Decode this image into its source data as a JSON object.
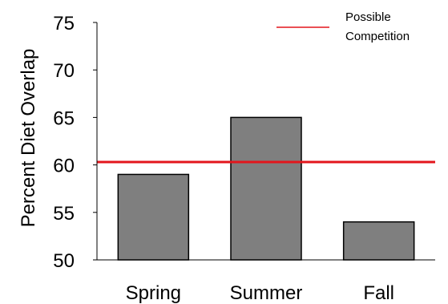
{
  "chart_data": {
    "type": "bar",
    "categories": [
      "Spring",
      "Summer",
      "Fall"
    ],
    "values": [
      59,
      65,
      54
    ],
    "ylabel": "Percent Diet Overlap",
    "xlabel": "",
    "ylim": [
      50,
      75
    ],
    "yticks": [
      50,
      55,
      60,
      65,
      70,
      75
    ],
    "bar_color": "#7f7f7f",
    "bar_edge_color": "#000000",
    "reference_line": {
      "value": 60.3,
      "color": "#e3161c",
      "legend_label_line1": "Possible",
      "legend_label_line2": "Competition"
    },
    "legend_position": "top-right",
    "grid": false
  }
}
